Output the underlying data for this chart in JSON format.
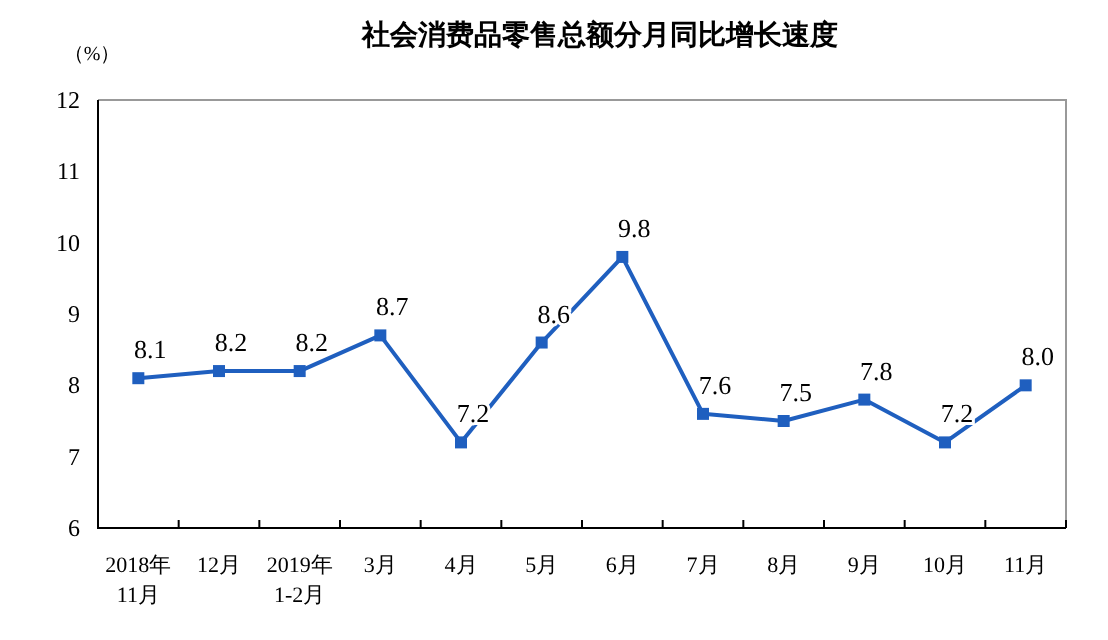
{
  "chart_data": {
    "type": "line",
    "title": "社会消费品零售总额分月同比增长速度",
    "ylabel": "（%）",
    "categories": [
      "2018年\n11月",
      "12月",
      "2019年\n1-2月",
      "3月",
      "4月",
      "5月",
      "6月",
      "7月",
      "8月",
      "9月",
      "10月",
      "11月"
    ],
    "series": [
      {
        "color": "#1f5fbf",
        "values": [
          8.1,
          8.2,
          8.2,
          8.7,
          7.2,
          8.6,
          9.8,
          7.6,
          7.5,
          7.8,
          7.2,
          8.0
        ],
        "value_labels": [
          "8.1",
          "8.2",
          "8.2",
          "8.7",
          "7.2",
          "8.6",
          "9.8",
          "7.6",
          "7.5",
          "7.8",
          "7.2",
          "8.0"
        ]
      }
    ],
    "ylim": [
      6,
      12
    ],
    "yticks": [
      6,
      7,
      8,
      9,
      10,
      11,
      12
    ],
    "marker": "square",
    "grid": false
  }
}
